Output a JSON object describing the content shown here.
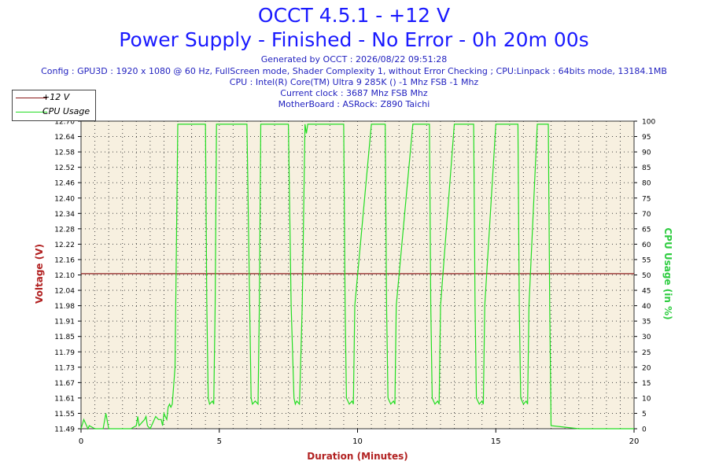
{
  "header": {
    "title": "OCCT 4.5.1 - +12 V",
    "subtitle": "Power Supply - Finished - No Error - 0h 20m 00s",
    "info_lines": [
      "Generated by OCCT : 2026/08/22 09:51:28",
      "Config : GPU3D : 1920 x 1080 @ 60 Hz, FullScreen mode, Shader Complexity 1, without Error Checking ; CPU:Linpack : 64bits mode, 13184.1MB",
      "CPU : Intel(R) Core(TM) Ultra 9 285K () -1 Mhz FSB -1 Mhz",
      "Current clock : 3687 Mhz FSB  Mhz",
      "MotherBoard : ASRock: Z890 Taichi"
    ]
  },
  "colors": {
    "voltage": "#8b1a1a",
    "cpu": "#22dd22",
    "plot_bg": "#f7f0e0",
    "title": "#1a1aff",
    "axis_label_left": "#b22222",
    "axis_label_right": "#2ecc40"
  },
  "chart_data": {
    "type": "line",
    "xlabel": "Duration (Minutes)",
    "ylabel_left": "Voltage (V)",
    "ylabel_right": "CPU Usage (in %)",
    "xlim": [
      0,
      20
    ],
    "ylim_left": [
      11.49,
      12.7
    ],
    "ylim_right": [
      0,
      100
    ],
    "x_ticks": [
      0,
      5,
      10,
      15,
      20
    ],
    "y_left_ticks": [
      "11.49",
      "11.55",
      "11.61",
      "11.67",
      "11.73",
      "11.79",
      "11.85",
      "11.91",
      "11.98",
      "12.04",
      "12.10",
      "12.16",
      "12.22",
      "12.28",
      "12.34",
      "12.40",
      "12.46",
      "12.52",
      "12.58",
      "12.64",
      "12.70"
    ],
    "y_right_ticks": [
      0,
      5,
      10,
      15,
      20,
      25,
      30,
      35,
      40,
      45,
      50,
      55,
      60,
      65,
      70,
      75,
      80,
      85,
      90,
      95,
      100
    ],
    "grid": true,
    "legend": "top-left",
    "series": [
      {
        "name": "+12 V",
        "axis": "left",
        "x": [
          0,
          20
        ],
        "y": [
          12.1,
          12.1
        ]
      },
      {
        "name": "CPU Usage",
        "axis": "right",
        "x": [
          0,
          0.1,
          0.25,
          0.3,
          0.5,
          0.8,
          0.9,
          1.0,
          1.2,
          1.5,
          1.8,
          2.0,
          2.05,
          2.1,
          2.2,
          2.3,
          2.35,
          2.4,
          2.5,
          2.6,
          2.7,
          2.8,
          2.9,
          2.95,
          3.0,
          3.1,
          3.15,
          3.2,
          3.25,
          3.3,
          3.4,
          3.5,
          4.0,
          4.5,
          4.55,
          4.6,
          4.65,
          4.75,
          4.8,
          4.85,
          4.9,
          5.5,
          6.0,
          6.1,
          6.15,
          6.2,
          6.3,
          6.4,
          6.45,
          6.5,
          7.0,
          7.5,
          7.6,
          7.7,
          7.75,
          7.8,
          7.9,
          8.0,
          8.1,
          8.15,
          8.2,
          8.3,
          8.5,
          9.0,
          9.5,
          9.55,
          9.6,
          9.7,
          9.8,
          9.85,
          9.9,
          10.5,
          11.0,
          11.05,
          11.1,
          11.2,
          11.3,
          11.35,
          11.4,
          12.0,
          12.6,
          12.65,
          12.7,
          12.8,
          12.9,
          12.95,
          13.0,
          13.5,
          14.2,
          14.25,
          14.3,
          14.4,
          14.5,
          14.55,
          14.6,
          15.0,
          15.8,
          15.85,
          15.9,
          16.0,
          16.1,
          16.15,
          16.2,
          16.5,
          16.9,
          16.95,
          17.0,
          18.0,
          19.0,
          20.0
        ],
        "y": [
          0,
          3,
          0,
          1,
          0,
          0,
          5,
          0,
          0,
          0,
          0,
          1,
          4,
          1,
          2,
          3,
          4,
          1,
          0,
          2,
          4,
          3,
          3,
          1,
          5,
          3,
          7,
          8,
          7,
          8,
          20,
          99,
          99,
          99,
          40,
          10,
          8,
          9,
          8,
          40,
          99,
          99,
          99,
          40,
          10,
          8,
          9,
          8,
          40,
          99,
          99,
          99,
          40,
          10,
          8,
          9,
          8,
          40,
          99,
          96,
          99,
          99,
          99,
          99,
          99,
          40,
          10,
          8,
          9,
          8,
          40,
          99,
          99,
          40,
          10,
          8,
          9,
          8,
          40,
          99,
          99,
          40,
          10,
          8,
          9,
          8,
          40,
          99,
          99,
          40,
          10,
          8,
          9,
          8,
          40,
          99,
          99,
          40,
          10,
          8,
          9,
          8,
          40,
          99,
          99,
          40,
          1,
          0,
          0,
          0
        ]
      }
    ]
  }
}
